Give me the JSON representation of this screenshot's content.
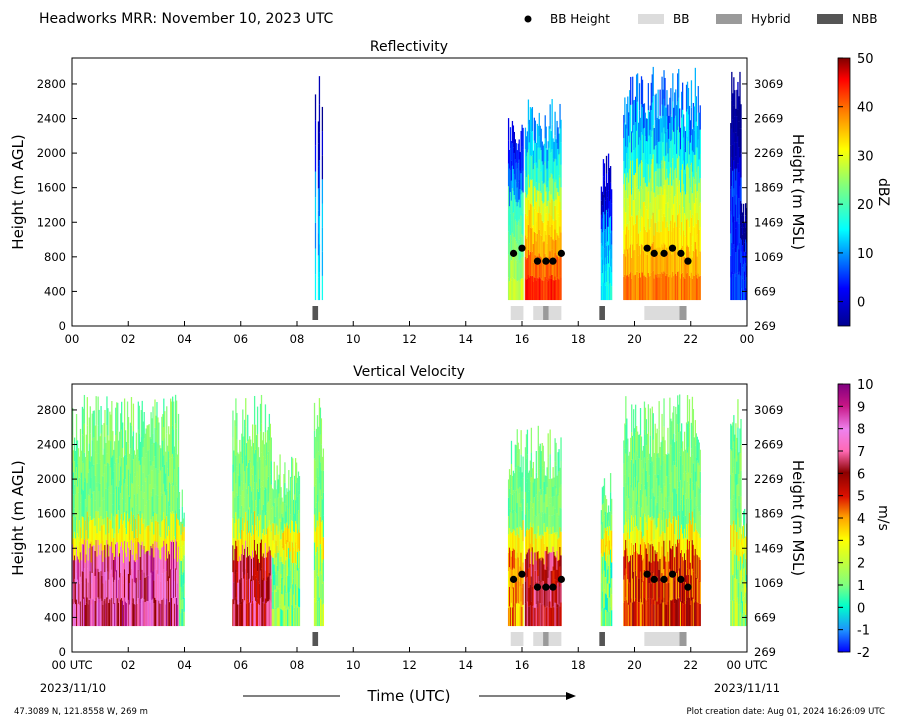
{
  "header": {
    "title": "Headworks MRR:  November 10, 2023 UTC",
    "legend": [
      {
        "label": "BB Height",
        "symbol": "dot",
        "color": "#000000"
      },
      {
        "label": "BB",
        "symbol": "rect",
        "color": "#dcdcdc"
      },
      {
        "label": "Hybrid",
        "symbol": "rect",
        "color": "#9a9a9a"
      },
      {
        "label": "NBB",
        "symbol": "rect",
        "color": "#555555"
      }
    ]
  },
  "footer": {
    "location": "47.3089 N, 121.8558 W, 269 m",
    "creation": "Plot creation date: Aug 01, 2024 16:26:09 UTC"
  },
  "colors": {
    "bb": "#dcdcdc",
    "hybrid": "#9a9a9a",
    "nbb": "#555555",
    "marker": "#000000"
  },
  "chart_data": [
    {
      "type": "heatmap",
      "title": "Reflectivity",
      "xlabel": "",
      "ylabel": "Height (m AGL)",
      "y2label": "Height (m MSL)",
      "xticks": [
        "00",
        "02",
        "04",
        "06",
        "08",
        "10",
        "12",
        "14",
        "16",
        "18",
        "20",
        "22",
        "00"
      ],
      "xlim": [
        0,
        24
      ],
      "ylim": [
        0,
        3100
      ],
      "yticks": [
        "0",
        "400",
        "800",
        "1200",
        "1600",
        "2000",
        "2400",
        "2800"
      ],
      "y2ticks": [
        "269",
        "669",
        "1069",
        "1469",
        "1869",
        "2269",
        "2669",
        "3069"
      ],
      "colorbar": {
        "label": "dBZ",
        "min": -5,
        "max": 50,
        "ticks": [
          "0",
          "10",
          "20",
          "30",
          "40",
          "50"
        ],
        "scale": "jet"
      },
      "echo_blocks": [
        {
          "x0": 8.6,
          "x1": 8.95,
          "top": 2950,
          "core": 9,
          "note": "sparse"
        },
        {
          "x0": 15.5,
          "x1": 16.05,
          "top": 2600,
          "core": 22
        },
        {
          "x0": 16.1,
          "x1": 17.4,
          "top": 2650,
          "core": 40
        },
        {
          "x0": 18.8,
          "x1": 19.2,
          "top": 2000,
          "core": 10
        },
        {
          "x0": 19.6,
          "x1": 22.35,
          "top": 3000,
          "core": 35
        },
        {
          "x0": 23.4,
          "x1": 23.8,
          "top": 2980,
          "core": 2
        },
        {
          "x0": 23.75,
          "x1": 24.0,
          "top": 1450,
          "core": 2
        }
      ],
      "bb_height": [
        {
          "x": 15.7,
          "y": 840
        },
        {
          "x": 16.0,
          "y": 900
        },
        {
          "x": 16.55,
          "y": 750
        },
        {
          "x": 16.85,
          "y": 750
        },
        {
          "x": 17.1,
          "y": 750
        },
        {
          "x": 17.4,
          "y": 840
        },
        {
          "x": 20.45,
          "y": 900
        },
        {
          "x": 20.7,
          "y": 840
        },
        {
          "x": 21.05,
          "y": 840
        },
        {
          "x": 21.35,
          "y": 900
        },
        {
          "x": 21.65,
          "y": 840
        },
        {
          "x": 21.9,
          "y": 750
        }
      ],
      "bb_type": [
        {
          "x0": 8.55,
          "x1": 8.75,
          "kind": "nbb"
        },
        {
          "x0": 15.6,
          "x1": 16.05,
          "kind": "bb"
        },
        {
          "x0": 16.4,
          "x1": 16.75,
          "kind": "bb"
        },
        {
          "x0": 16.75,
          "x1": 16.95,
          "kind": "hybrid"
        },
        {
          "x0": 16.95,
          "x1": 17.4,
          "kind": "bb"
        },
        {
          "x0": 18.75,
          "x1": 18.95,
          "kind": "nbb"
        },
        {
          "x0": 20.35,
          "x1": 21.6,
          "kind": "bb"
        },
        {
          "x0": 21.6,
          "x1": 21.85,
          "kind": "hybrid"
        }
      ]
    },
    {
      "type": "heatmap",
      "title": "Vertical Velocity",
      "xlabel": "Time (UTC)",
      "ylabel": "Height (m AGL)",
      "y2label": "Height (m MSL)",
      "xticks": [
        "00 UTC",
        "02",
        "04",
        "06",
        "08",
        "10",
        "12",
        "14",
        "16",
        "18",
        "20",
        "22",
        "00 UTC"
      ],
      "xdates": [
        "2023/11/10",
        "2023/11/11"
      ],
      "xlim": [
        0,
        24
      ],
      "ylim": [
        0,
        3100
      ],
      "yticks": [
        "0",
        "400",
        "800",
        "1200",
        "1600",
        "2000",
        "2400",
        "2800"
      ],
      "y2ticks": [
        "269",
        "669",
        "1069",
        "1469",
        "1869",
        "2269",
        "2669",
        "3069"
      ],
      "colorbar": {
        "label": "m/s",
        "min": -2,
        "max": 10,
        "ticks": [
          "-2",
          "-1",
          "0",
          "1",
          "2",
          "3",
          "4",
          "5",
          "6",
          "7",
          "8",
          "9",
          "10"
        ],
        "scale": "velocity"
      },
      "echo_blocks": [
        {
          "x0": 0.0,
          "x1": 3.8,
          "top": 3000,
          "core": 7,
          "note": "strong"
        },
        {
          "x0": 3.8,
          "x1": 4.0,
          "top": 1900,
          "core": 1
        },
        {
          "x0": 5.7,
          "x1": 7.1,
          "top": 3000,
          "core": 6,
          "note": "strong"
        },
        {
          "x0": 7.1,
          "x1": 8.1,
          "top": 2300,
          "core": 1.2
        },
        {
          "x0": 8.6,
          "x1": 8.95,
          "top": 2950,
          "core": 1.5
        },
        {
          "x0": 15.5,
          "x1": 16.05,
          "top": 2650,
          "core": 4
        },
        {
          "x0": 16.1,
          "x1": 17.4,
          "top": 2650,
          "core": 6
        },
        {
          "x0": 18.8,
          "x1": 19.2,
          "top": 2100,
          "core": 1
        },
        {
          "x0": 19.6,
          "x1": 22.35,
          "top": 3000,
          "core": 5
        },
        {
          "x0": 23.4,
          "x1": 23.8,
          "top": 3000,
          "core": 1.5
        },
        {
          "x0": 23.75,
          "x1": 24.0,
          "top": 1700,
          "core": 1.5
        }
      ],
      "bb_height": [
        {
          "x": 15.7,
          "y": 840
        },
        {
          "x": 16.0,
          "y": 900
        },
        {
          "x": 16.55,
          "y": 750
        },
        {
          "x": 16.85,
          "y": 750
        },
        {
          "x": 17.1,
          "y": 750
        },
        {
          "x": 17.4,
          "y": 840
        },
        {
          "x": 20.45,
          "y": 900
        },
        {
          "x": 20.7,
          "y": 840
        },
        {
          "x": 21.05,
          "y": 840
        },
        {
          "x": 21.35,
          "y": 900
        },
        {
          "x": 21.65,
          "y": 840
        },
        {
          "x": 21.9,
          "y": 750
        }
      ],
      "bb_type": [
        {
          "x0": 8.55,
          "x1": 8.75,
          "kind": "nbb"
        },
        {
          "x0": 15.6,
          "x1": 16.05,
          "kind": "bb"
        },
        {
          "x0": 16.4,
          "x1": 16.75,
          "kind": "bb"
        },
        {
          "x0": 16.75,
          "x1": 16.95,
          "kind": "hybrid"
        },
        {
          "x0": 16.95,
          "x1": 17.4,
          "kind": "bb"
        },
        {
          "x0": 18.75,
          "x1": 18.95,
          "kind": "nbb"
        },
        {
          "x0": 20.35,
          "x1": 21.6,
          "kind": "bb"
        },
        {
          "x0": 21.6,
          "x1": 21.85,
          "kind": "hybrid"
        }
      ]
    }
  ]
}
